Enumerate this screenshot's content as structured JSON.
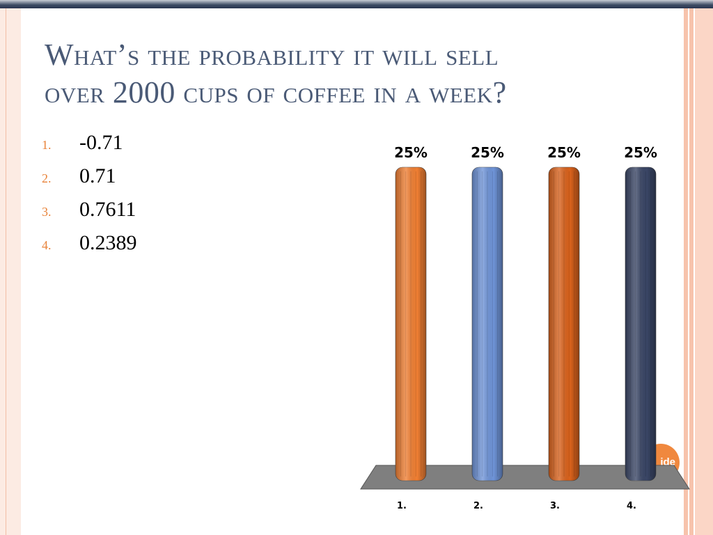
{
  "slide": {
    "title_line1": "What’s the probability it will sell",
    "title_line2": "over 2000 cups of coffee in a week?",
    "options": [
      {
        "num": "1.",
        "value": "-0.71"
      },
      {
        "num": "2.",
        "value": "0.71"
      },
      {
        "num": "3.",
        "value": "0.7611"
      },
      {
        "num": "4.",
        "value": "0.2389"
      }
    ],
    "badge_text": "ide"
  },
  "chart_data": {
    "type": "bar",
    "categories": [
      "1.",
      "2.",
      "3.",
      "4."
    ],
    "values": [
      25,
      25,
      25,
      25
    ],
    "data_labels": [
      "25%",
      "25%",
      "25%",
      "25%"
    ],
    "colors": [
      "#f07f33",
      "#6f94d8",
      "#d9621c",
      "#3a4666"
    ],
    "ylim": [
      0,
      25
    ],
    "grid": false,
    "legend": "none"
  }
}
